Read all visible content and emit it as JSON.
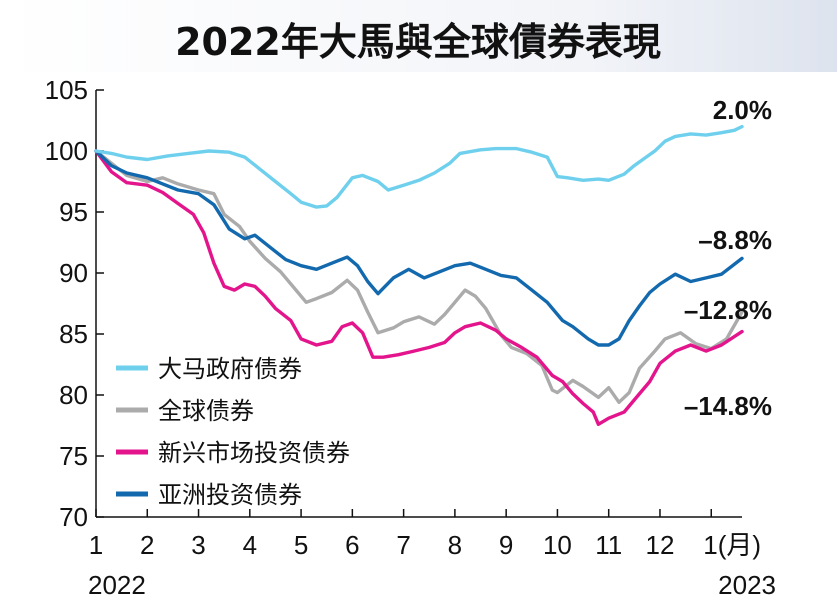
{
  "chart_data": {
    "type": "line",
    "title": "2022年大馬與全球債券表現",
    "xlabel": "",
    "ylabel": "",
    "ylim": [
      70,
      105
    ],
    "yticks": [
      70,
      75,
      80,
      85,
      90,
      95,
      100,
      105
    ],
    "xlim": [
      1,
      13.6
    ],
    "x_ticks": [
      {
        "x": 1,
        "label": "1"
      },
      {
        "x": 2,
        "label": "2"
      },
      {
        "x": 3,
        "label": "3"
      },
      {
        "x": 4,
        "label": "4"
      },
      {
        "x": 5,
        "label": "5"
      },
      {
        "x": 6,
        "label": "6"
      },
      {
        "x": 7,
        "label": "7"
      },
      {
        "x": 8,
        "label": "8"
      },
      {
        "x": 9,
        "label": "9"
      },
      {
        "x": 10,
        "label": "10"
      },
      {
        "x": 11,
        "label": "11"
      },
      {
        "x": 12,
        "label": "12"
      },
      {
        "x": 13,
        "label": "1(月)"
      }
    ],
    "year_labels": {
      "start": "2022",
      "end": "2023"
    },
    "grid": false,
    "legend_position": "bottom-left",
    "series": [
      {
        "name": "大马政府债券",
        "color": "#6FD0EE",
        "end_label": "2.0%",
        "x": [
          1,
          1.3,
          1.6,
          2,
          2.4,
          2.8,
          3.2,
          3.6,
          3.9,
          4.2,
          4.5,
          4.8,
          5.0,
          5.3,
          5.5,
          5.7,
          5.85,
          6.0,
          6.2,
          6.5,
          6.7,
          7.0,
          7.3,
          7.6,
          7.9,
          8.1,
          8.5,
          8.8,
          9.2,
          9.5,
          9.8,
          10.0,
          10.2,
          10.5,
          10.8,
          11.0,
          11.3,
          11.5,
          11.7,
          11.9,
          12.1,
          12.3,
          12.6,
          12.9,
          13.2,
          13.45,
          13.6
        ],
        "values": [
          100,
          99.8,
          99.5,
          99.3,
          99.6,
          99.8,
          100,
          99.9,
          99.5,
          98.5,
          97.5,
          96.5,
          95.8,
          95.4,
          95.5,
          96.2,
          97,
          97.8,
          98,
          97.5,
          96.8,
          97.2,
          97.6,
          98.2,
          99,
          99.8,
          100.1,
          100.2,
          100.2,
          99.9,
          99.5,
          97.9,
          97.8,
          97.6,
          97.7,
          97.6,
          98.1,
          98.8,
          99.4,
          100,
          100.8,
          101.2,
          101.4,
          101.3,
          101.5,
          101.7,
          102
        ]
      },
      {
        "name": "全球债券",
        "color": "#ABABAB",
        "end_label": "–12.8%",
        "x": [
          1,
          1.3,
          1.6,
          2,
          2.3,
          2.6,
          3.0,
          3.3,
          3.5,
          3.8,
          4.0,
          4.3,
          4.6,
          4.9,
          5.1,
          5.3,
          5.6,
          5.9,
          6.1,
          6.3,
          6.5,
          6.8,
          7.0,
          7.3,
          7.6,
          7.8,
          8.0,
          8.2,
          8.4,
          8.6,
          8.9,
          9.1,
          9.4,
          9.7,
          9.9,
          10.0,
          10.3,
          10.5,
          10.8,
          11.0,
          11.2,
          11.4,
          11.6,
          11.9,
          12.1,
          12.4,
          12.7,
          13.0,
          13.3,
          13.6
        ],
        "values": [
          100,
          99,
          98,
          97.5,
          97.8,
          97.3,
          96.8,
          96.5,
          94.8,
          93.8,
          92.6,
          91.2,
          90.1,
          88.6,
          87.6,
          87.9,
          88.4,
          89.4,
          88.6,
          86.8,
          85.1,
          85.5,
          86,
          86.4,
          85.8,
          86.6,
          87.6,
          88.6,
          88.1,
          87.1,
          84.9,
          83.9,
          83.4,
          82.4,
          80.4,
          80.2,
          81.2,
          80.7,
          79.8,
          80.6,
          79.4,
          80.2,
          82.2,
          83.6,
          84.6,
          85.1,
          84.2,
          83.8,
          84.6,
          86.8
        ]
      },
      {
        "name": "新兴市场投资债券",
        "color": "#E3148C",
        "end_label": "–14.8%",
        "x": [
          1,
          1.3,
          1.6,
          2,
          2.3,
          2.6,
          2.9,
          3.1,
          3.3,
          3.5,
          3.7,
          3.9,
          4.1,
          4.3,
          4.5,
          4.8,
          5.0,
          5.3,
          5.6,
          5.8,
          6.0,
          6.2,
          6.4,
          6.6,
          6.9,
          7.2,
          7.5,
          7.8,
          8.0,
          8.2,
          8.5,
          8.8,
          9.0,
          9.3,
          9.6,
          9.9,
          10.1,
          10.3,
          10.5,
          10.7,
          10.8,
          11.0,
          11.3,
          11.5,
          11.8,
          12.0,
          12.3,
          12.6,
          12.9,
          13.2,
          13.6
        ],
        "values": [
          100,
          98.3,
          97.4,
          97.2,
          96.6,
          95.7,
          94.8,
          93.3,
          90.8,
          88.9,
          88.6,
          89.1,
          88.9,
          88.1,
          87.1,
          86.1,
          84.6,
          84.1,
          84.4,
          85.6,
          85.9,
          85.1,
          83.1,
          83.1,
          83.3,
          83.6,
          83.9,
          84.3,
          85.1,
          85.6,
          85.9,
          85.3,
          84.6,
          83.9,
          83.1,
          81.6,
          81.1,
          80.1,
          79.3,
          78.6,
          77.6,
          78.1,
          78.6,
          79.6,
          81.1,
          82.6,
          83.6,
          84.1,
          83.6,
          84.1,
          85.2
        ]
      },
      {
        "name": "亚洲投资债券",
        "color": "#1369AE",
        "end_label": "–8.8%",
        "x": [
          1,
          1.3,
          1.6,
          2,
          2.3,
          2.6,
          3.0,
          3.3,
          3.6,
          3.9,
          4.1,
          4.4,
          4.7,
          5.0,
          5.3,
          5.6,
          5.9,
          6.1,
          6.3,
          6.5,
          6.8,
          7.1,
          7.4,
          7.7,
          8.0,
          8.3,
          8.6,
          8.9,
          9.2,
          9.5,
          9.8,
          10.1,
          10.3,
          10.6,
          10.8,
          11.0,
          11.2,
          11.4,
          11.6,
          11.8,
          12.0,
          12.3,
          12.6,
          12.9,
          13.2,
          13.6
        ],
        "values": [
          100,
          98.8,
          98.2,
          97.8,
          97.3,
          96.8,
          96.5,
          95.6,
          93.6,
          92.8,
          93.1,
          92.1,
          91.1,
          90.6,
          90.3,
          90.8,
          91.3,
          90.6,
          89.3,
          88.3,
          89.6,
          90.3,
          89.6,
          90.1,
          90.6,
          90.8,
          90.3,
          89.8,
          89.6,
          88.6,
          87.6,
          86.1,
          85.6,
          84.6,
          84.1,
          84.1,
          84.6,
          86.1,
          87.3,
          88.4,
          89.1,
          89.9,
          89.3,
          89.6,
          89.9,
          91.2
        ]
      }
    ]
  }
}
